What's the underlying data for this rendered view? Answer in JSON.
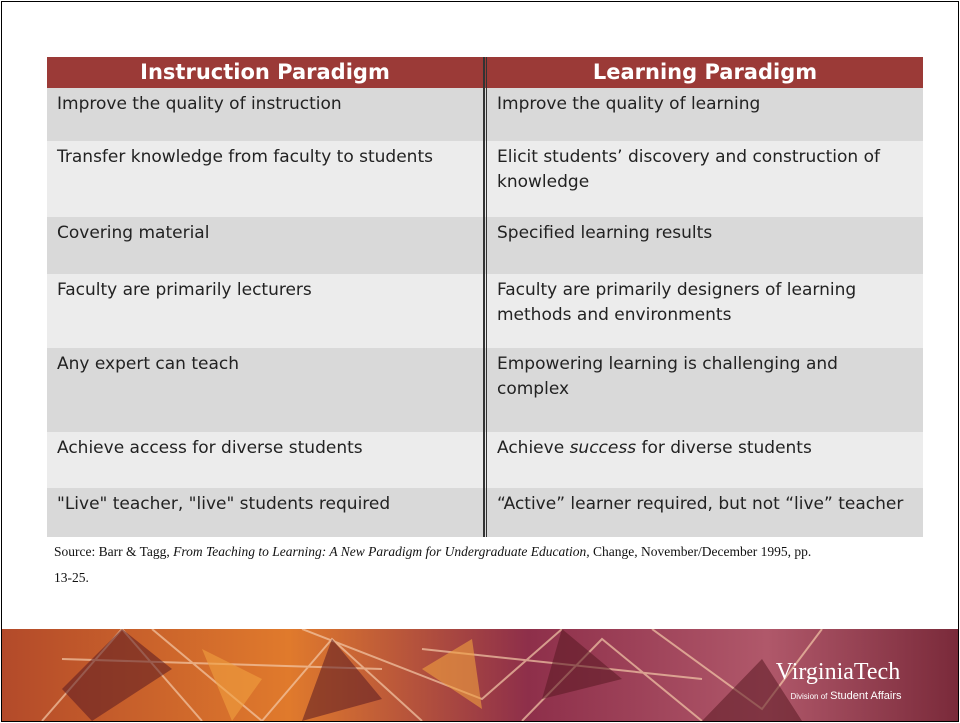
{
  "table": {
    "header": [
      "Instruction Paradigm",
      "Learning Paradigm"
    ],
    "rows": [
      [
        "Improve the quality of instruction",
        "Improve the quality of learning"
      ],
      [
        "Transfer knowledge from faculty to students",
        "Elicit students’ discovery and construction of knowledge"
      ],
      [
        "Covering material",
        "Specified learning results"
      ],
      [
        "Faculty are primarily lecturers",
        "Faculty are primarily designers of learning methods and environments"
      ],
      [
        "Any expert can teach",
        "Empowering learning is challenging and complex"
      ],
      [
        "Achieve access for diverse students",
        [
          "Achieve ",
          "success",
          " for diverse students"
        ]
      ],
      [
        "\"Live\" teacher, \"live\" students required",
        "“Active” learner required, but not “live” teacher"
      ]
    ]
  },
  "source": {
    "prefix": "Source: Barr & Tagg, ",
    "title": "From Teaching to Learning: A New Paradigm for Undergraduate Education,",
    "suffix": " Change, November/December 1995, pp. 13-25."
  },
  "footer": {
    "logo": "VirginiaTech",
    "division_prefix": "Division of",
    "division": "Student Affairs"
  }
}
